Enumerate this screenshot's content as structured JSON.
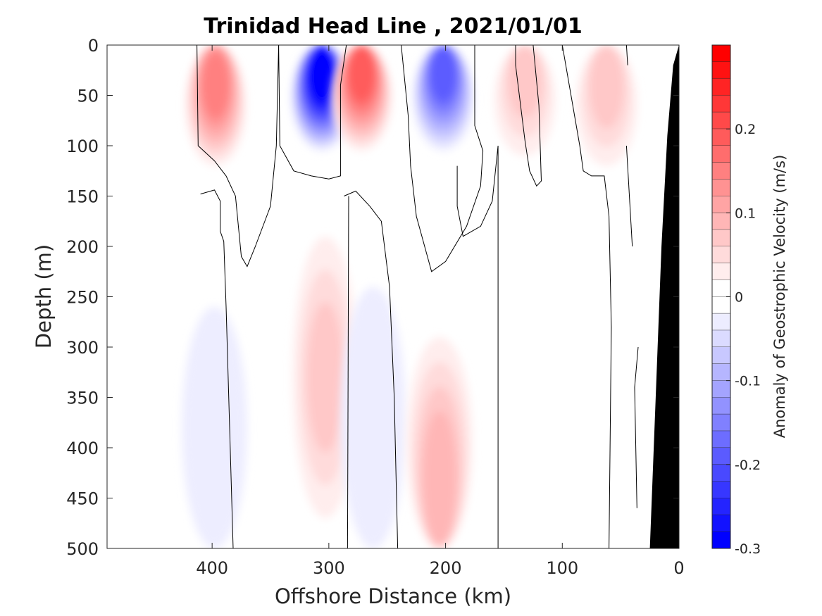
{
  "chart_data": {
    "type": "heatmap",
    "title": "Trinidad Head Line , 2021/01/01",
    "xlabel": "Offshore Distance (km)",
    "ylabel": "Depth (m)",
    "x_reversed": true,
    "y_reversed": true,
    "xlim": [
      490,
      0
    ],
    "ylim": [
      0,
      500
    ],
    "xticks": [
      400,
      300,
      200,
      100,
      0
    ],
    "yticks": [
      0,
      50,
      100,
      150,
      200,
      250,
      300,
      350,
      400,
      450,
      500
    ],
    "colorbar": {
      "label": "Anomaly of Geostrophic Velocity (m/s)",
      "range": [
        -0.3,
        0.3
      ],
      "step": 0.02,
      "ticks": [
        0.2,
        0.1,
        0,
        -0.1,
        -0.2,
        -0.3
      ],
      "tick_labels": [
        "0.2",
        "0.1",
        "0",
        "-0.1",
        "-0.2",
        "-0.3"
      ]
    },
    "features": [
      {
        "kind": "positive",
        "center_km": 397,
        "center_depth_m": 40,
        "peak_m_s": 0.14
      },
      {
        "kind": "negative",
        "center_km": 306,
        "center_depth_m": 25,
        "peak_m_s": -0.3
      },
      {
        "kind": "positive",
        "center_km": 272,
        "center_depth_m": 25,
        "peak_m_s": 0.18
      },
      {
        "kind": "negative",
        "center_km": 202,
        "center_depth_m": 25,
        "peak_m_s": -0.18
      },
      {
        "kind": "positive",
        "center_km": 132,
        "center_depth_m": 30,
        "peak_m_s": 0.06
      },
      {
        "kind": "positive",
        "center_km": 62,
        "center_depth_m": 40,
        "peak_m_s": 0.06
      },
      {
        "kind": "positive",
        "center_km": 303,
        "center_depth_m": 330,
        "peak_m_s": 0.06
      },
      {
        "kind": "negative",
        "center_km": 262,
        "center_depth_m": 380,
        "peak_m_s": -0.03
      },
      {
        "kind": "positive",
        "center_km": 205,
        "center_depth_m": 430,
        "peak_m_s": 0.08
      },
      {
        "kind": "negative",
        "center_km": 398,
        "center_depth_m": 400,
        "peak_m_s": -0.03
      }
    ],
    "zero_contours": [
      [
        [
          410,
          148
        ],
        [
          398,
          144
        ],
        [
          393,
          155
        ],
        [
          393,
          185
        ],
        [
          390,
          195
        ],
        [
          388,
          260
        ],
        [
          385,
          380
        ],
        [
          382,
          500
        ]
      ],
      [
        [
          343,
          0
        ],
        [
          345,
          100
        ],
        [
          350,
          160
        ],
        [
          363,
          200
        ],
        [
          370,
          220
        ],
        [
          375,
          210
        ],
        [
          380,
          150
        ],
        [
          388,
          130
        ],
        [
          398,
          115
        ],
        [
          412,
          100
        ],
        [
          413,
          0
        ]
      ],
      [
        [
          285,
          0
        ],
        [
          290,
          40
        ],
        [
          290,
          130
        ],
        [
          300,
          133
        ],
        [
          315,
          130
        ],
        [
          330,
          125
        ],
        [
          342,
          100
        ],
        [
          343,
          0
        ]
      ],
      [
        [
          287,
          150
        ],
        [
          277,
          145
        ],
        [
          265,
          160
        ],
        [
          255,
          175
        ],
        [
          248,
          240
        ],
        [
          244,
          350
        ],
        [
          241,
          500
        ]
      ],
      [
        [
          283,
          150
        ],
        [
          284,
          500
        ]
      ],
      [
        [
          238,
          0
        ],
        [
          232,
          70
        ],
        [
          230,
          120
        ],
        [
          225,
          170
        ],
        [
          212,
          225
        ],
        [
          200,
          215
        ],
        [
          182,
          180
        ],
        [
          170,
          140
        ],
        [
          168,
          105
        ],
        [
          175,
          80
        ],
        [
          175,
          0
        ]
      ],
      [
        [
          190,
          120
        ],
        [
          190,
          160
        ],
        [
          185,
          190
        ],
        [
          170,
          180
        ],
        [
          160,
          155
        ],
        [
          155,
          100
        ],
        [
          155,
          500
        ]
      ],
      [
        [
          125,
          0
        ],
        [
          120,
          60
        ],
        [
          118,
          135
        ],
        [
          122,
          140
        ],
        [
          128,
          125
        ],
        [
          132,
          95
        ],
        [
          140,
          20
        ],
        [
          140,
          0
        ]
      ],
      [
        [
          100,
          0
        ],
        [
          85,
          100
        ],
        [
          82,
          125
        ],
        [
          75,
          130
        ],
        [
          68,
          130
        ],
        [
          64,
          130
        ],
        [
          60,
          170
        ],
        [
          58,
          280
        ],
        [
          60,
          500
        ]
      ],
      [
        [
          45,
          0
        ],
        [
          44,
          20
        ]
      ],
      [
        [
          45,
          100
        ],
        [
          40,
          200
        ]
      ],
      [
        [
          35,
          300
        ],
        [
          38,
          340
        ],
        [
          36,
          460
        ]
      ]
    ],
    "bottom_profile": [
      [
        0,
        0
      ],
      [
        5,
        20
      ],
      [
        10,
        90
      ],
      [
        15,
        200
      ],
      [
        20,
        350
      ],
      [
        25,
        500
      ]
    ]
  }
}
